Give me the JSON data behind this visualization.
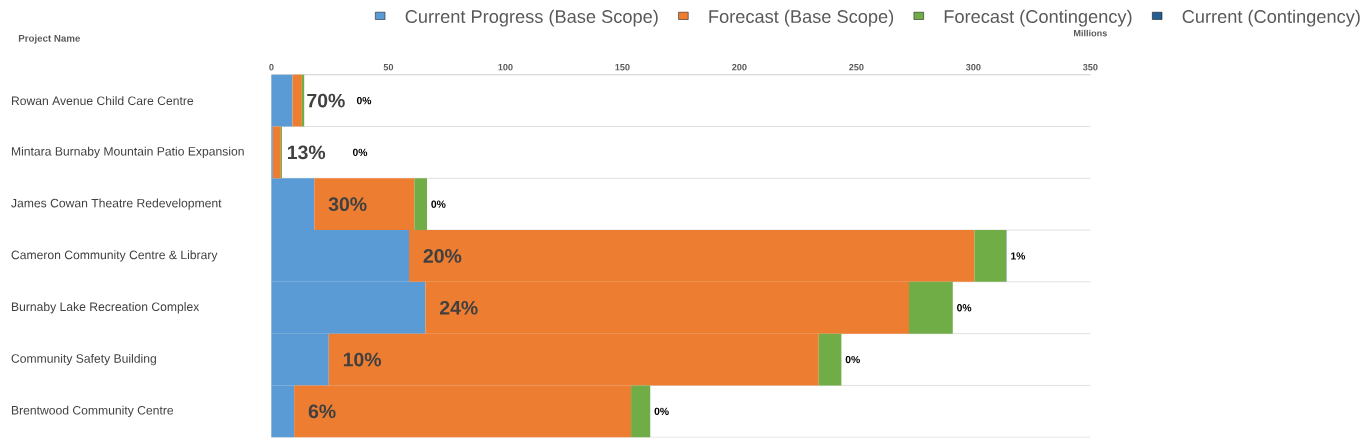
{
  "chart_data": {
    "type": "bar",
    "orientation": "horizontal",
    "stacked": true,
    "ylabel": "Project Name",
    "xlabel": "Millions",
    "categories": [
      "Rowan Avenue Child Care Centre",
      "Mintara Burnaby Mountain Patio Expansion",
      "James Cowan Theatre Redevelopment",
      "Cameron Community Centre & Library",
      "Burnaby Lake Recreation Complex",
      "Community Safety Building",
      "Brentwood Community Centre"
    ],
    "series": [
      {
        "name": "Current Progress (Base Scope)",
        "color": "#5b9bd5",
        "values": [
          9,
          0.6,
          18.3,
          58.8,
          65.8,
          24.5,
          9.7
        ]
      },
      {
        "name": "Forecast (Base Scope)",
        "color": "#ed7d31",
        "values": [
          4,
          3.4,
          42.8,
          241.7,
          206.7,
          209.4,
          144
        ]
      },
      {
        "name": "Forecast (Contingency)",
        "color": "#70ad47",
        "values": [
          1,
          0.5,
          5.4,
          13.6,
          18.7,
          9.7,
          8.2
        ]
      },
      {
        "name": "Current (Contingency)",
        "color": "#255e91",
        "values": [
          0,
          0,
          0,
          0.1,
          0,
          0,
          0
        ]
      }
    ],
    "annotations": [
      {
        "text": "70%",
        "x": 9,
        "y": "Rowan Avenue Child Care Centre"
      },
      {
        "text": "13%",
        "x": 0.6,
        "y": "Mintara Burnaby Mountain Patio Expansion"
      },
      {
        "text": "30%",
        "x": 18.3,
        "y": "James Cowan Theatre Redevelopment"
      },
      {
        "text": "20%",
        "x": 58.8,
        "y": "Cameron Community Centre & Library"
      },
      {
        "text": "24%",
        "x": 65.8,
        "y": "Burnaby Lake Recreation Complex"
      },
      {
        "text": "10%",
        "x": 24.5,
        "y": "Community Safety Building"
      },
      {
        "text": "6%",
        "x": 9.7,
        "y": "Brentwood Community Centre"
      },
      "0%",
      {
        "text": "0%",
        "x": 33,
        "y": "Mintara Burnaby Mountain Patio Expansion"
      },
      {
        "text": "0%",
        "x": 66.5,
        "y": "James Cowan Theatre Redevelopment"
      },
      {
        "text": "1%",
        "x": 314.2,
        "y": "Cameron Community Centre & Library"
      },
      {
        "text": "0%",
        "x": 291.2,
        "y": "Burnaby Lake Recreation Complex"
      },
      {
        "text": "0%",
        "x": 243.6,
        "y": "Community Safety Building"
      },
      {
        "text": "0%",
        "x": 161.9,
        "y": "Brentwood Community Centre"
      }
    ],
    "xlim": [
      0,
      350
    ],
    "xticks": [
      0,
      50,
      100,
      150,
      200,
      250,
      300,
      350
    ],
    "grid": "y",
    "legend": "top"
  }
}
